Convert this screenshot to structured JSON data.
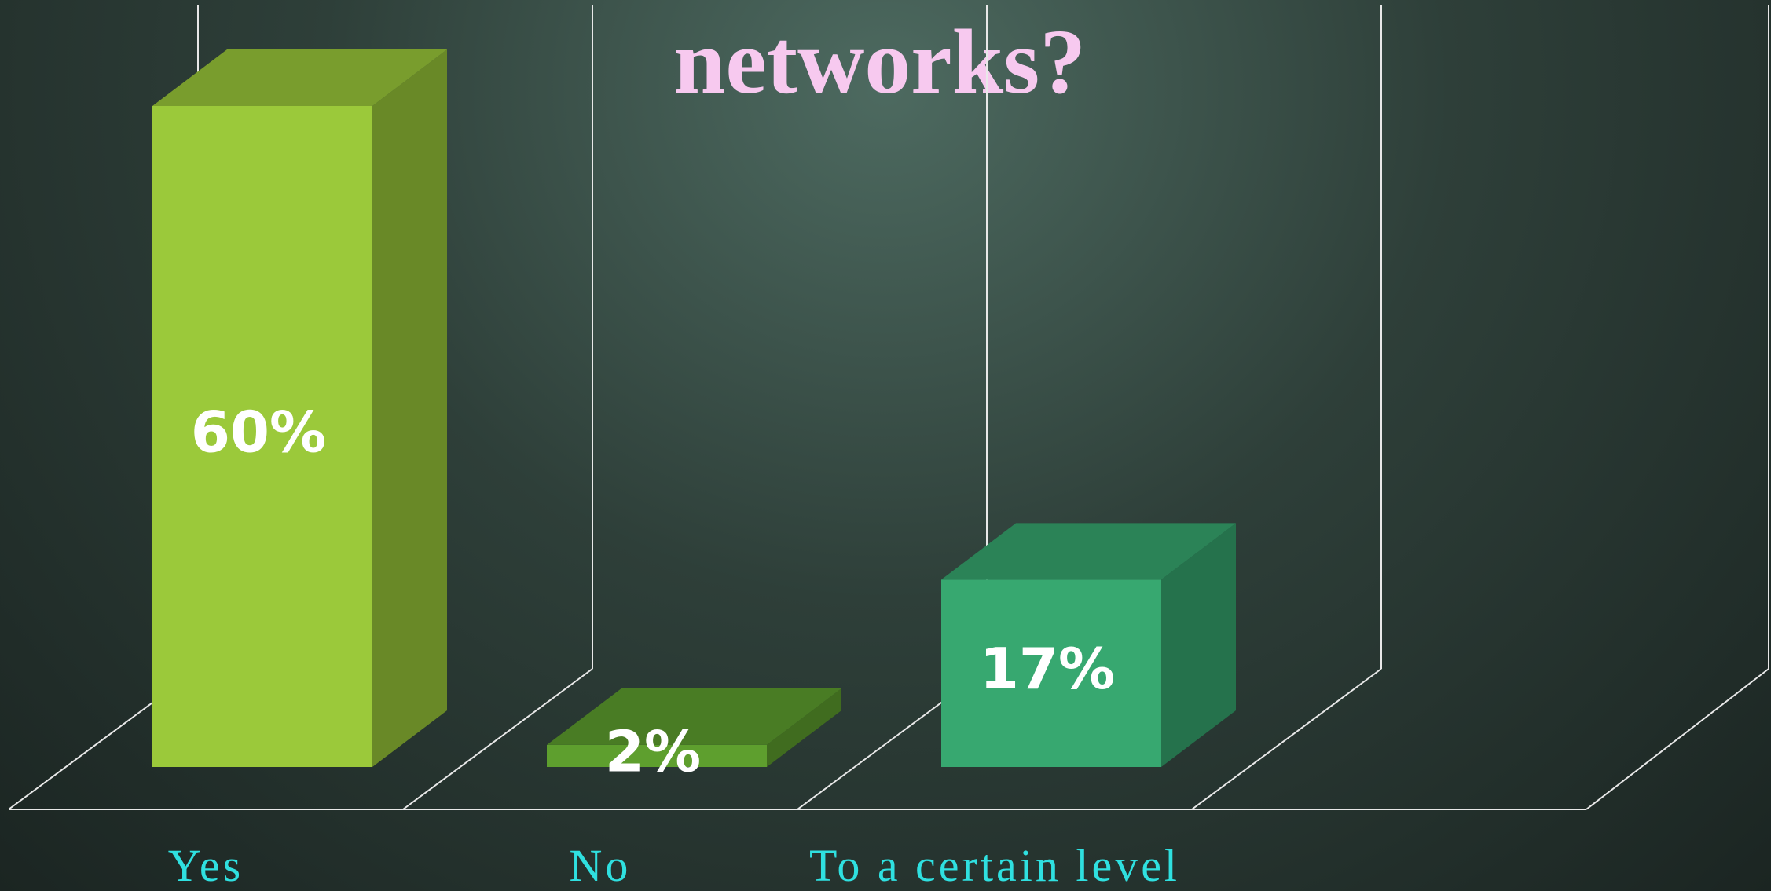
{
  "chart_data": {
    "type": "bar3d",
    "title": "networks?",
    "categories": [
      "Yes",
      "No",
      "To a certain level",
      null
    ],
    "values": [
      60,
      2,
      17,
      null
    ],
    "value_labels": [
      "60%",
      "2%",
      "17%",
      null
    ],
    "colors": [
      "#9bc93a",
      "#5e9f2e",
      "#37a870",
      null
    ]
  }
}
